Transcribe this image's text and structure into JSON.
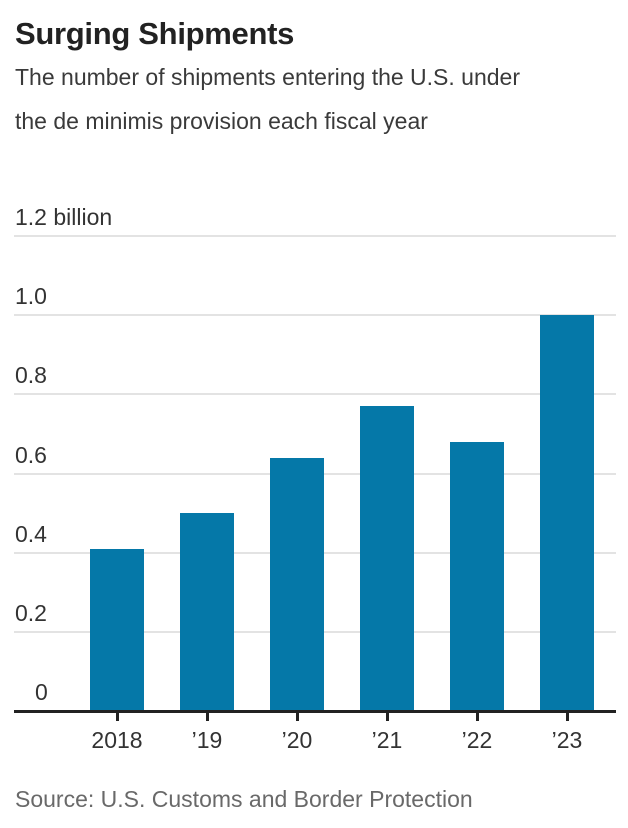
{
  "header": {
    "title": "Surging Shipments",
    "subtitle": "The number of shipments entering the U.S. under the de minimis provision each fiscal year"
  },
  "chart_data": {
    "type": "bar",
    "title": "Surging Shipments",
    "subtitle": "The number of shipments entering the U.S. under the de minimis provision each fiscal year",
    "categories": [
      "2018",
      "’19",
      "’20",
      "’21",
      "’22",
      "’23"
    ],
    "values": [
      0.41,
      0.5,
      0.64,
      0.77,
      0.68,
      1.0
    ],
    "unit": "billion",
    "xlabel": "",
    "ylabel": "",
    "ylim": [
      0,
      1.2
    ],
    "y_ticks": [
      {
        "value": 0,
        "label": "0"
      },
      {
        "value": 0.2,
        "label": "0.2"
      },
      {
        "value": 0.4,
        "label": "0.4"
      },
      {
        "value": 0.6,
        "label": "0.6"
      },
      {
        "value": 0.8,
        "label": "0.8"
      },
      {
        "value": 1.0,
        "label": "1.0"
      },
      {
        "value": 1.2,
        "label": "1.2 billion"
      }
    ],
    "grid": true,
    "legend": "none",
    "bar_color": "#0578a8"
  },
  "footer": {
    "source": "Source: U.S. Customs and Border Protection"
  }
}
